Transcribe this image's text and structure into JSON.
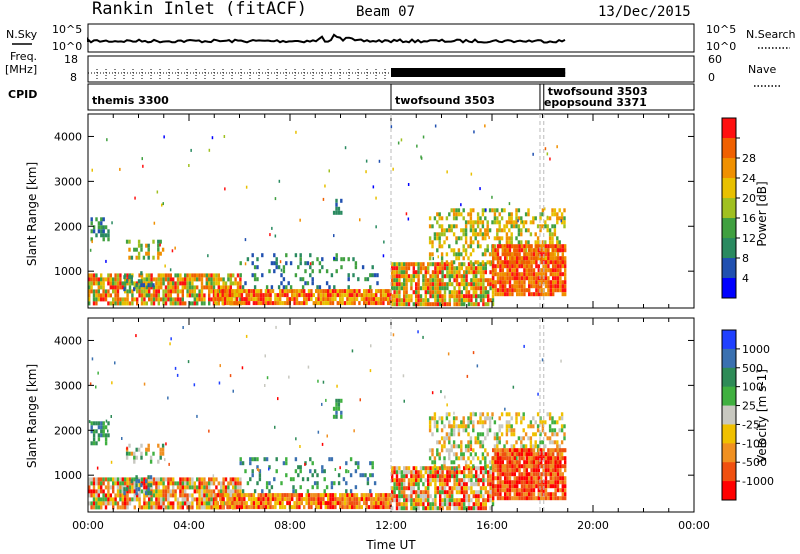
{
  "header": {
    "station": "Rankin Inlet (fitACF)",
    "beam": "Beam 07",
    "date": "13/Dec/2015"
  },
  "status_panels": {
    "nsky_label": "N.Sky",
    "nsky_ticks": [
      "10^5",
      "10^0"
    ],
    "nsearch_label": "N.Search",
    "freq_label_1": "Freq.",
    "freq_label_2": "[MHz]",
    "freq_ticks": [
      "18",
      "8"
    ],
    "nave_ticks": [
      "60",
      "0"
    ],
    "nave_label": "Nave",
    "cpid_label": "CPID",
    "cpid_entries": [
      {
        "name": "themis 3300",
        "start_hour": 0.0
      },
      {
        "name": "twofsound 3503",
        "start_hour": 12.0
      },
      {
        "name": "twofsound 3503",
        "start_hour": 18.05
      },
      {
        "name": "epopsound 3371",
        "start_hour": 17.9
      }
    ]
  },
  "chart_data": [
    {
      "type": "heatmap",
      "panel": "power",
      "ylabel": "Slant Range [km]",
      "xlim": [
        0,
        24
      ],
      "ylim": [
        180,
        4500
      ],
      "yticks": [
        "1000",
        "2000",
        "3000",
        "4000"
      ],
      "colorbar_label": "Power [dB]",
      "colorbar_ticks": [
        "4",
        "8",
        "12",
        "16",
        "20",
        "24",
        "28"
      ],
      "colors": [
        "#0000ff",
        "#2050b0",
        "#2a8a60",
        "#40a040",
        "#a0c020",
        "#e8c000",
        "#f09000",
        "#f06000",
        "#ff1010"
      ]
    },
    {
      "type": "heatmap",
      "panel": "velocity",
      "ylabel": "Slant Range [km]",
      "xlabel": "Time UT",
      "xlim": [
        0,
        24
      ],
      "ylim": [
        180,
        4500
      ],
      "xticks": [
        "00:00",
        "04:00",
        "08:00",
        "12:00",
        "16:00",
        "20:00",
        "00:00"
      ],
      "yticks": [
        "1000",
        "2000",
        "3000",
        "4000"
      ],
      "colorbar_label": "Velocity [m s-1]",
      "colorbar_ticks": [
        "1000",
        "500",
        "100",
        "25",
        "-25",
        "-100",
        "-500",
        "-1000"
      ],
      "colors": [
        "#2040ff",
        "#3a70b0",
        "#2e8b57",
        "#40b040",
        "#c8c8c0",
        "#f0c000",
        "#f09020",
        "#f05010",
        "#ff0000"
      ]
    }
  ]
}
